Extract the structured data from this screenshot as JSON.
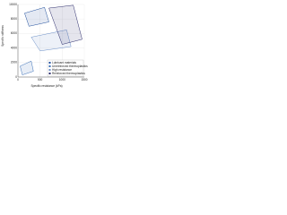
{
  "chart_data": {
    "type": "region",
    "xlabel": "Specific resistance (kPa)",
    "ylabel": "Specific stiffness",
    "xlim": [
      0,
      1500
    ],
    "xticks": [
      0,
      500,
      1000,
      1500
    ],
    "ylim": [
      0,
      10000
    ],
    "yticks": [
      0,
      2000,
      4000,
      6000,
      8000,
      10000
    ],
    "grid": true,
    "legend": "lower right",
    "series": [
      {
        "name": "Lubricant materials",
        "color": "#1f4e9c",
        "x": [
          150,
          600,
          700,
          250
        ],
        "values": [
          8800,
          9600,
          7600,
          7000
        ]
      },
      {
        "name": "Unreinforced thermoplastics",
        "color": "#3a6fb7",
        "x": [
          50,
          300,
          350,
          100
        ],
        "values": [
          1500,
          2200,
          800,
          300
        ]
      },
      {
        "name": "High resistance",
        "color": "#6b8fc7",
        "x": [
          300,
          1100,
          1200,
          500
        ],
        "values": [
          5500,
          6500,
          4200,
          3600
        ]
      },
      {
        "name": "Reinforced thermoplastics",
        "color": "#2b2b6b",
        "x": [
          700,
          1250,
          1450,
          1000
        ],
        "values": [
          9500,
          9900,
          5200,
          4500
        ]
      }
    ]
  }
}
